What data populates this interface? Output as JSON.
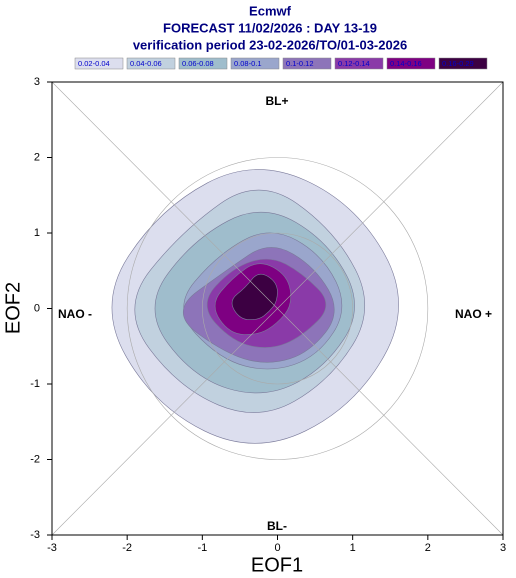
{
  "chart_data": {
    "type": "contour",
    "title": "Ecmwf",
    "subtitle": "FORECAST 11/02/2026 : DAY 13-19",
    "subtitle2": "verification period 23-02-2026/TO/01-03-2026",
    "x_label": "EOF1",
    "y_label": "EOF2",
    "annotations": [
      "BL+",
      "BL-",
      "NAO -",
      "NAO +"
    ],
    "contour_levels": [
      0.02,
      0.04,
      0.06,
      0.08,
      0.1,
      0.12,
      0.14,
      0.16,
      0.29
    ],
    "level_labels": [
      "0.02-0.04",
      "0.04-0.06",
      "0.06-0.08",
      "0.08-0.1",
      "0.1-0.12",
      "0.12-0.14",
      "0.14-0.16",
      "0.16-0.29"
    ],
    "colors": [
      "#dcdeee",
      "#c1d1df",
      "#9fbdcc",
      "#9aa6cc",
      "#8d74b9",
      "#8a3aa8",
      "#7e0082",
      "#3c0042"
    ],
    "xlim": [
      -3,
      3
    ],
    "ylim": [
      -3,
      3
    ],
    "xticks": [
      -3,
      -2,
      -1,
      0,
      1,
      2,
      3
    ],
    "yticks": [
      -3,
      -2,
      -1,
      0,
      1,
      2,
      3
    ]
  }
}
